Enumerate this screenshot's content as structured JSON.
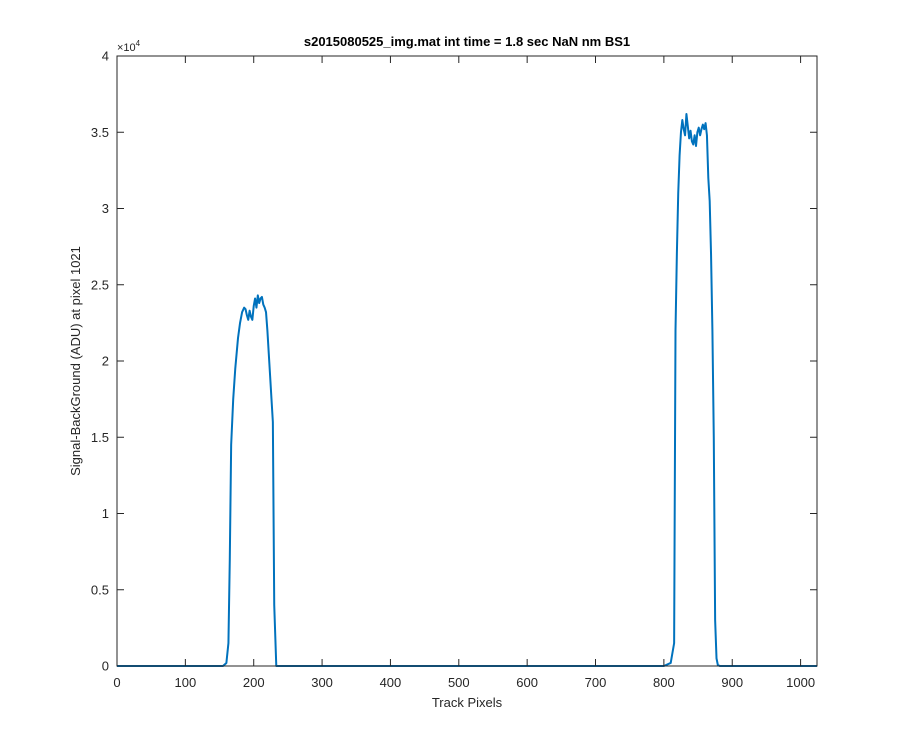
{
  "chart_data": {
    "type": "line",
    "title": "s2015080525_img.mat int time = 1.8 sec  NaN nm BS1",
    "xlabel": "Track Pixels",
    "ylabel": "Signal-BackGround (ADU) at pixel 1021",
    "xlim": [
      0,
      1024
    ],
    "ylim": [
      0,
      40000
    ],
    "y_exponent_label": "×10",
    "y_exponent_power": "4",
    "x_ticks": [
      0,
      100,
      200,
      300,
      400,
      500,
      600,
      700,
      800,
      900,
      1000
    ],
    "x_tick_labels": [
      "0",
      "100",
      "200",
      "300",
      "400",
      "500",
      "600",
      "700",
      "800",
      "900",
      "1000"
    ],
    "y_ticks": [
      0,
      5000,
      10000,
      15000,
      20000,
      25000,
      30000,
      35000,
      40000
    ],
    "y_tick_labels": [
      "0",
      "0.5",
      "1",
      "1.5",
      "2",
      "2.5",
      "3",
      "3.5",
      "4"
    ],
    "grid": false,
    "line_color": "#0072BD",
    "series": [
      {
        "x": [
          0,
          155,
          160,
          163,
          165,
          167,
          170,
          173,
          177,
          180,
          183,
          186,
          188,
          190,
          192,
          194,
          196,
          198,
          200,
          202,
          204,
          206,
          208,
          210,
          212,
          214,
          216,
          218,
          220,
          222,
          224,
          226,
          228,
          230,
          233,
          240,
          400,
          600,
          800,
          810,
          815,
          817,
          819,
          821,
          823,
          825,
          827,
          829,
          831,
          833,
          835,
          837,
          839,
          841,
          843,
          845,
          847,
          849,
          851,
          853,
          855,
          857,
          859,
          861,
          863,
          865,
          867,
          869,
          871,
          873,
          875,
          877,
          879,
          882,
          890,
          1024
        ],
        "y": [
          0,
          0,
          200,
          1500,
          7000,
          14500,
          17500,
          19500,
          21500,
          22500,
          23200,
          23500,
          23400,
          23000,
          22700,
          23300,
          22900,
          22700,
          23600,
          24100,
          23500,
          24300,
          23800,
          24100,
          24200,
          23700,
          23500,
          23200,
          22000,
          20500,
          19000,
          17500,
          16000,
          4000,
          0,
          0,
          0,
          0,
          0,
          200,
          1500,
          22000,
          27000,
          31000,
          33500,
          35000,
          35800,
          35200,
          34800,
          36200,
          35400,
          34600,
          35100,
          34400,
          34200,
          34800,
          34100,
          35000,
          35300,
          34800,
          35200,
          35500,
          35200,
          35600,
          34800,
          32000,
          30500,
          27000,
          22000,
          15000,
          3000,
          500,
          50,
          0,
          0,
          0
        ]
      }
    ]
  }
}
